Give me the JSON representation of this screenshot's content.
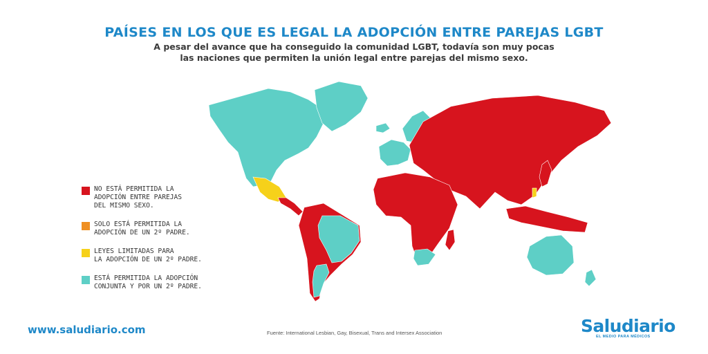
{
  "header": {
    "title": "PAÍSES EN LOS QUE ES LEGAL LA ADOPCIÓN ENTRE PAREJAS LGBT",
    "subtitle_lines": [
      "A pesar del avance que ha conseguido la comunidad LGBT, todavía son muy pocas",
      "las naciones que permiten la unión legal entre parejas del mismo sexo."
    ]
  },
  "colors": {
    "title": "#1e88c8",
    "not_allowed": "#d7141e",
    "second_parent_only": "#ef8f22",
    "limited": "#f6d11a",
    "allowed": "#5ecfc6"
  },
  "legend": {
    "items": [
      {
        "color_key": "not_allowed",
        "lines": [
          "NO ESTÁ PERMITIDA LA",
          "ADOPCIÓN ENTRE PAREJAS",
          "DEL MISMO SEXO."
        ]
      },
      {
        "color_key": "second_parent_only",
        "lines": [
          "SOLO ESTÁ PERMITIDA LA",
          "ADOPCIÓN DE UN 2º PADRE."
        ]
      },
      {
        "color_key": "limited",
        "lines": [
          "LEYES LIMITADAS PARA",
          "LA ADOPCIÓN DE UN 2º PADRE."
        ]
      },
      {
        "color_key": "allowed",
        "lines": [
          "ESTÁ PERMITIDA LA ADOPCIÓN",
          "CONJUNTA Y POR UN 2º PADRE."
        ]
      }
    ]
  },
  "map": {
    "regions": [
      {
        "id": "north-america",
        "status": "allowed"
      },
      {
        "id": "greenland",
        "status": "allowed"
      },
      {
        "id": "mexico",
        "status": "limited"
      },
      {
        "id": "central-america",
        "status": "not_allowed"
      },
      {
        "id": "south-america",
        "status": "not_allowed"
      },
      {
        "id": "brazil",
        "status": "allowed"
      },
      {
        "id": "argentina",
        "status": "allowed"
      },
      {
        "id": "western-europe",
        "status": "allowed"
      },
      {
        "id": "scandinavia",
        "status": "allowed"
      },
      {
        "id": "iceland",
        "status": "allowed"
      },
      {
        "id": "eurasia",
        "status": "not_allowed"
      },
      {
        "id": "africa",
        "status": "not_allowed"
      },
      {
        "id": "south-africa",
        "status": "allowed"
      },
      {
        "id": "madagascar",
        "status": "not_allowed"
      },
      {
        "id": "southeast-asia",
        "status": "not_allowed"
      },
      {
        "id": "japan",
        "status": "not_allowed"
      },
      {
        "id": "taiwan",
        "status": "limited"
      },
      {
        "id": "australia",
        "status": "allowed"
      },
      {
        "id": "new-zealand",
        "status": "allowed"
      }
    ]
  },
  "footer": {
    "website": "www.saludiario.com",
    "source": "Fuente: International Lesbian, Gay, Bisexual, Trans and Intersex Association",
    "brand_name": "Saludiario",
    "brand_tagline": "EL MEDIO PARA MÉDICOS"
  }
}
